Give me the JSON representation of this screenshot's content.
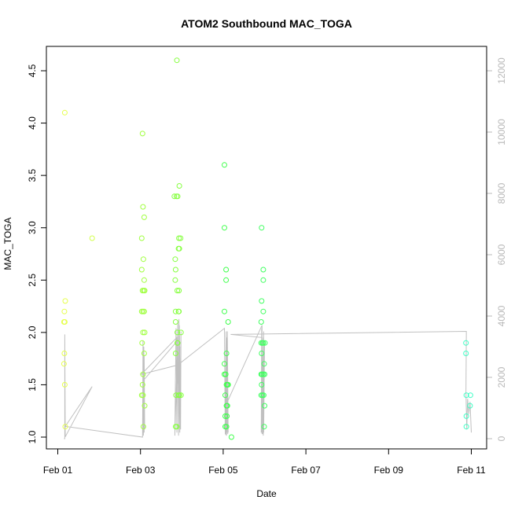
{
  "chart_data": {
    "type": "scatter",
    "title": "ATOM2 Southbound MAC_TOGA",
    "xlabel": "Date",
    "ylabel": "MAC_TOGA",
    "x_ticks": [
      "Feb 01",
      "Feb 03",
      "Feb 05",
      "Feb 07",
      "Feb 09",
      "Feb 11"
    ],
    "y_ticks": [
      "1.0",
      "1.5",
      "2.0",
      "2.5",
      "3.0",
      "3.5",
      "4.0",
      "4.5"
    ],
    "y2_ticks": [
      "0",
      "2000",
      "4000",
      "6000",
      "8000",
      "10000",
      "12000"
    ],
    "xlim": [
      0.8,
      11.3
    ],
    "ylim": [
      0.93,
      4.75
    ],
    "y2lim": [
      -250,
      12900
    ],
    "grid": false,
    "points": [
      {
        "x": 1.17,
        "y": 4.1,
        "color": "#e6ff4d"
      },
      {
        "x": 1.18,
        "y": 2.3,
        "color": "#e6ff4d"
      },
      {
        "x": 1.16,
        "y": 2.2,
        "color": "#e6ff4d"
      },
      {
        "x": 1.15,
        "y": 2.1,
        "color": "#e6ff4d"
      },
      {
        "x": 1.17,
        "y": 2.1,
        "color": "#e6ff4d"
      },
      {
        "x": 1.16,
        "y": 1.8,
        "color": "#e6ff4d"
      },
      {
        "x": 1.15,
        "y": 1.7,
        "color": "#e6ff4d"
      },
      {
        "x": 1.17,
        "y": 1.5,
        "color": "#e6ff4d"
      },
      {
        "x": 1.18,
        "y": 1.1,
        "color": "#e6ff4d"
      },
      {
        "x": 1.83,
        "y": 2.9,
        "color": "#d2ff4d"
      },
      {
        "x": 3.05,
        "y": 3.9,
        "color": "#a0ff40"
      },
      {
        "x": 3.06,
        "y": 3.2,
        "color": "#a0ff40"
      },
      {
        "x": 3.09,
        "y": 3.1,
        "color": "#a0ff40"
      },
      {
        "x": 3.03,
        "y": 2.9,
        "color": "#a0ff40"
      },
      {
        "x": 3.07,
        "y": 2.7,
        "color": "#a0ff40"
      },
      {
        "x": 3.03,
        "y": 2.6,
        "color": "#a0ff40"
      },
      {
        "x": 3.09,
        "y": 2.5,
        "color": "#a0ff40"
      },
      {
        "x": 3.05,
        "y": 2.4,
        "color": "#a0ff40"
      },
      {
        "x": 3.08,
        "y": 2.4,
        "color": "#a0ff40"
      },
      {
        "x": 3.1,
        "y": 2.4,
        "color": "#a0ff40"
      },
      {
        "x": 3.03,
        "y": 2.2,
        "color": "#a0ff40"
      },
      {
        "x": 3.06,
        "y": 2.2,
        "color": "#a0ff40"
      },
      {
        "x": 3.09,
        "y": 2.2,
        "color": "#a0ff40"
      },
      {
        "x": 3.06,
        "y": 2.0,
        "color": "#a0ff40"
      },
      {
        "x": 3.1,
        "y": 2.0,
        "color": "#a0ff40"
      },
      {
        "x": 3.04,
        "y": 1.9,
        "color": "#a0ff40"
      },
      {
        "x": 3.09,
        "y": 1.8,
        "color": "#a0ff40"
      },
      {
        "x": 3.06,
        "y": 1.6,
        "color": "#a0ff40"
      },
      {
        "x": 3.05,
        "y": 1.5,
        "color": "#a0ff40"
      },
      {
        "x": 3.03,
        "y": 1.4,
        "color": "#a0ff40"
      },
      {
        "x": 3.06,
        "y": 1.4,
        "color": "#a0ff40"
      },
      {
        "x": 3.1,
        "y": 1.3,
        "color": "#a0ff40"
      },
      {
        "x": 3.07,
        "y": 1.1,
        "color": "#a0ff40"
      },
      {
        "x": 3.88,
        "y": 4.6,
        "color": "#86ff40"
      },
      {
        "x": 3.94,
        "y": 3.4,
        "color": "#86ff40"
      },
      {
        "x": 3.82,
        "y": 3.3,
        "color": "#86ff40"
      },
      {
        "x": 3.87,
        "y": 3.3,
        "color": "#86ff40"
      },
      {
        "x": 3.9,
        "y": 3.3,
        "color": "#86ff40"
      },
      {
        "x": 3.93,
        "y": 2.9,
        "color": "#86ff40"
      },
      {
        "x": 3.97,
        "y": 2.9,
        "color": "#86ff40"
      },
      {
        "x": 3.92,
        "y": 2.8,
        "color": "#86ff40"
      },
      {
        "x": 3.94,
        "y": 2.8,
        "color": "#86ff40"
      },
      {
        "x": 3.84,
        "y": 2.7,
        "color": "#86ff40"
      },
      {
        "x": 3.85,
        "y": 2.6,
        "color": "#86ff40"
      },
      {
        "x": 3.84,
        "y": 2.5,
        "color": "#86ff40"
      },
      {
        "x": 3.89,
        "y": 2.4,
        "color": "#86ff40"
      },
      {
        "x": 3.93,
        "y": 2.4,
        "color": "#86ff40"
      },
      {
        "x": 3.85,
        "y": 2.2,
        "color": "#86ff40"
      },
      {
        "x": 3.92,
        "y": 2.2,
        "color": "#86ff40"
      },
      {
        "x": 3.93,
        "y": 2.2,
        "color": "#86ff40"
      },
      {
        "x": 3.85,
        "y": 2.1,
        "color": "#86ff40"
      },
      {
        "x": 3.89,
        "y": 2.0,
        "color": "#86ff40"
      },
      {
        "x": 3.98,
        "y": 2.0,
        "color": "#86ff40"
      },
      {
        "x": 3.89,
        "y": 1.9,
        "color": "#86ff40"
      },
      {
        "x": 3.9,
        "y": 1.9,
        "color": "#86ff40"
      },
      {
        "x": 3.85,
        "y": 1.8,
        "color": "#86ff40"
      },
      {
        "x": 3.86,
        "y": 1.4,
        "color": "#86ff40"
      },
      {
        "x": 3.92,
        "y": 1.4,
        "color": "#86ff40"
      },
      {
        "x": 3.94,
        "y": 1.4,
        "color": "#86ff40"
      },
      {
        "x": 3.98,
        "y": 1.4,
        "color": "#86ff40"
      },
      {
        "x": 3.85,
        "y": 1.1,
        "color": "#86ff40"
      },
      {
        "x": 3.88,
        "y": 1.1,
        "color": "#86ff40"
      },
      {
        "x": 5.03,
        "y": 3.6,
        "color": "#40ff4d"
      },
      {
        "x": 5.03,
        "y": 3.0,
        "color": "#40ff4d"
      },
      {
        "x": 5.07,
        "y": 2.6,
        "color": "#40ff4d"
      },
      {
        "x": 5.07,
        "y": 2.5,
        "color": "#40ff4d"
      },
      {
        "x": 5.03,
        "y": 2.2,
        "color": "#40ff4d"
      },
      {
        "x": 5.12,
        "y": 2.1,
        "color": "#40ff4d"
      },
      {
        "x": 5.08,
        "y": 1.8,
        "color": "#40ff4d"
      },
      {
        "x": 5.03,
        "y": 1.7,
        "color": "#40ff4d"
      },
      {
        "x": 5.03,
        "y": 1.6,
        "color": "#40ff4d"
      },
      {
        "x": 5.06,
        "y": 1.6,
        "color": "#40ff4d"
      },
      {
        "x": 5.08,
        "y": 1.5,
        "color": "#40ff4d"
      },
      {
        "x": 5.1,
        "y": 1.5,
        "color": "#40ff4d"
      },
      {
        "x": 5.12,
        "y": 1.5,
        "color": "#40ff4d"
      },
      {
        "x": 5.05,
        "y": 1.4,
        "color": "#40ff4d"
      },
      {
        "x": 5.08,
        "y": 1.3,
        "color": "#40ff4d"
      },
      {
        "x": 5.1,
        "y": 1.3,
        "color": "#40ff4d"
      },
      {
        "x": 5.05,
        "y": 1.2,
        "color": "#40ff4d"
      },
      {
        "x": 5.09,
        "y": 1.2,
        "color": "#40ff4d"
      },
      {
        "x": 5.05,
        "y": 1.1,
        "color": "#40ff4d"
      },
      {
        "x": 5.08,
        "y": 1.1,
        "color": "#40ff4d"
      },
      {
        "x": 5.2,
        "y": 1.0,
        "color": "#40ff4d"
      },
      {
        "x": 5.93,
        "y": 3.0,
        "color": "#40ff60"
      },
      {
        "x": 5.97,
        "y": 2.6,
        "color": "#40ff60"
      },
      {
        "x": 5.97,
        "y": 2.5,
        "color": "#40ff60"
      },
      {
        "x": 5.93,
        "y": 2.3,
        "color": "#40ff60"
      },
      {
        "x": 5.97,
        "y": 2.2,
        "color": "#40ff60"
      },
      {
        "x": 5.92,
        "y": 2.1,
        "color": "#40ff60"
      },
      {
        "x": 5.92,
        "y": 1.9,
        "color": "#40ff60"
      },
      {
        "x": 5.95,
        "y": 1.9,
        "color": "#40ff60"
      },
      {
        "x": 5.97,
        "y": 1.9,
        "color": "#40ff60"
      },
      {
        "x": 6.01,
        "y": 1.9,
        "color": "#40ff60"
      },
      {
        "x": 5.93,
        "y": 1.8,
        "color": "#40ff60"
      },
      {
        "x": 5.99,
        "y": 1.7,
        "color": "#40ff60"
      },
      {
        "x": 5.92,
        "y": 1.6,
        "color": "#40ff60"
      },
      {
        "x": 5.94,
        "y": 1.6,
        "color": "#40ff60"
      },
      {
        "x": 5.97,
        "y": 1.6,
        "color": "#40ff60"
      },
      {
        "x": 6.0,
        "y": 1.6,
        "color": "#40ff60"
      },
      {
        "x": 5.93,
        "y": 1.5,
        "color": "#40ff60"
      },
      {
        "x": 5.92,
        "y": 1.4,
        "color": "#40ff60"
      },
      {
        "x": 5.95,
        "y": 1.4,
        "color": "#40ff60"
      },
      {
        "x": 5.98,
        "y": 1.4,
        "color": "#40ff60"
      },
      {
        "x": 6.0,
        "y": 1.3,
        "color": "#40ff60"
      },
      {
        "x": 5.99,
        "y": 1.1,
        "color": "#40ff60"
      },
      {
        "x": 10.87,
        "y": 1.9,
        "color": "#40ffc6"
      },
      {
        "x": 10.87,
        "y": 1.8,
        "color": "#40ffc6"
      },
      {
        "x": 10.88,
        "y": 1.4,
        "color": "#40ffc6"
      },
      {
        "x": 10.98,
        "y": 1.4,
        "color": "#40ffc6"
      },
      {
        "x": 10.97,
        "y": 1.3,
        "color": "#40ffc6"
      },
      {
        "x": 10.88,
        "y": 1.2,
        "color": "#40ffc6"
      },
      {
        "x": 10.88,
        "y": 1.1,
        "color": "#40ffc6"
      }
    ],
    "secondary_line": {
      "color": "#c0c0c0",
      "x": [
        1.15,
        1.17,
        1.17,
        1.18,
        1.83,
        1.18,
        3.05,
        3.06,
        3.05,
        3.07,
        3.09,
        3.06,
        3.07,
        3.09,
        3.1,
        3.08,
        3.07,
        3.9,
        3.83,
        3.86,
        3.88,
        3.9,
        3.92,
        3.93,
        3.95,
        3.98,
        3.97,
        3.94,
        3.92,
        3.95,
        3.9,
        3.88,
        3.02,
        3.9,
        5.03,
        5.05,
        5.07,
        5.06,
        5.08,
        5.09,
        5.1,
        5.11,
        5.1,
        5.12,
        5.09,
        5.08,
        5.1,
        5.94,
        5.94,
        5.93,
        5.96,
        5.98,
        5.97,
        5.93,
        5.95,
        5.97,
        5.98,
        6.0,
        5.97,
        5.94,
        5.92,
        5.93,
        5.18,
        5.2,
        10.88,
        10.87,
        10.89,
        10.91,
        10.94,
        10.97,
        11.0
      ],
      "y": [
        0,
        0,
        3400,
        60,
        1700,
        400,
        50,
        3200,
        80,
        2400,
        200,
        3100,
        100,
        2700,
        300,
        3000,
        1900,
        3200,
        100,
        3600,
        200,
        3800,
        150,
        3900,
        200,
        3500,
        300,
        3700,
        100,
        3000,
        1800,
        3300,
        2100,
        2400,
        3600,
        150,
        3500,
        120,
        3300,
        200,
        3400,
        150,
        3500,
        200,
        3200,
        100,
        1200,
        3700,
        150,
        3600,
        200,
        3500,
        100,
        3400,
        150,
        3300,
        200,
        3100,
        150,
        3000,
        200,
        3300,
        3400,
        3400,
        3500,
        1500,
        300,
        1300,
        800,
        1200,
        200
      ]
    }
  }
}
